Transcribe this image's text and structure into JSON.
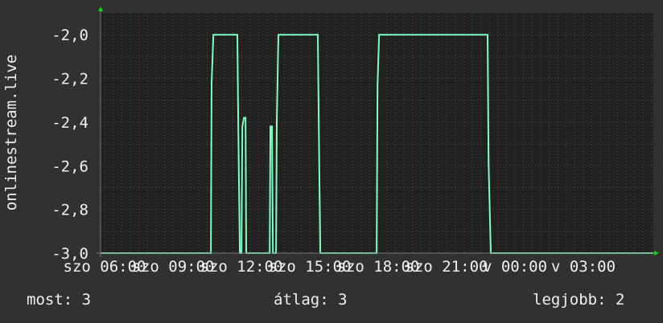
{
  "chart_data": {
    "type": "line",
    "title": "",
    "ylabel": "onlinestream.live",
    "xlabel": "",
    "ylim": [
      -3.0,
      -1.9
    ],
    "yticks": [
      "-2,0",
      "-2,2",
      "-2,4",
      "-2,6",
      "-2,8",
      "-3,0"
    ],
    "ytick_values": [
      -2.0,
      -2.2,
      -2.4,
      -2.6,
      -2.8,
      -3.0
    ],
    "xticks": [
      "szo 06:00",
      "szo 09:00",
      "szo 12:00",
      "szo 15:00",
      "szo 18:00",
      "szo 21:00",
      "v 00:00",
      "v 03:00"
    ],
    "xtick_hours": [
      6,
      9,
      12,
      15,
      18,
      21,
      24,
      27
    ],
    "xlim_hours": [
      5.82,
      30.07
    ],
    "grid": true,
    "colors": {
      "background": "#313131",
      "plot": "#212121",
      "grid_minor": "#555555",
      "grid_major": "#8a3a3a",
      "line": "#7dffbf",
      "axis_arrow": "#00e000"
    },
    "series": [
      {
        "x_hours": [
          5.82,
          10.66,
          10.69,
          10.77,
          11.82,
          11.86,
          11.93,
          12.0,
          12.04,
          12.11,
          12.18,
          12.21,
          13.24,
          13.27,
          13.34,
          13.38,
          13.52,
          13.55,
          13.62,
          15.35,
          15.39,
          15.46,
          17.93,
          17.97,
          18.04,
          22.8,
          22.84,
          22.94,
          30.07
        ],
        "values": [
          -3.0,
          -3.0,
          -2.22,
          -2.0,
          -2.0,
          -2.4,
          -3.0,
          -3.0,
          -2.42,
          -2.38,
          -2.38,
          -3.0,
          -3.0,
          -2.42,
          -2.42,
          -3.0,
          -3.0,
          -2.4,
          -2.0,
          -2.0,
          -2.38,
          -3.0,
          -3.0,
          -2.23,
          -2.0,
          -2.0,
          -2.58,
          -3.0,
          -3.0
        ]
      }
    ]
  },
  "legend": {
    "current": "most: 3",
    "average": "átlag: 3",
    "max": "legjobb: 2"
  }
}
